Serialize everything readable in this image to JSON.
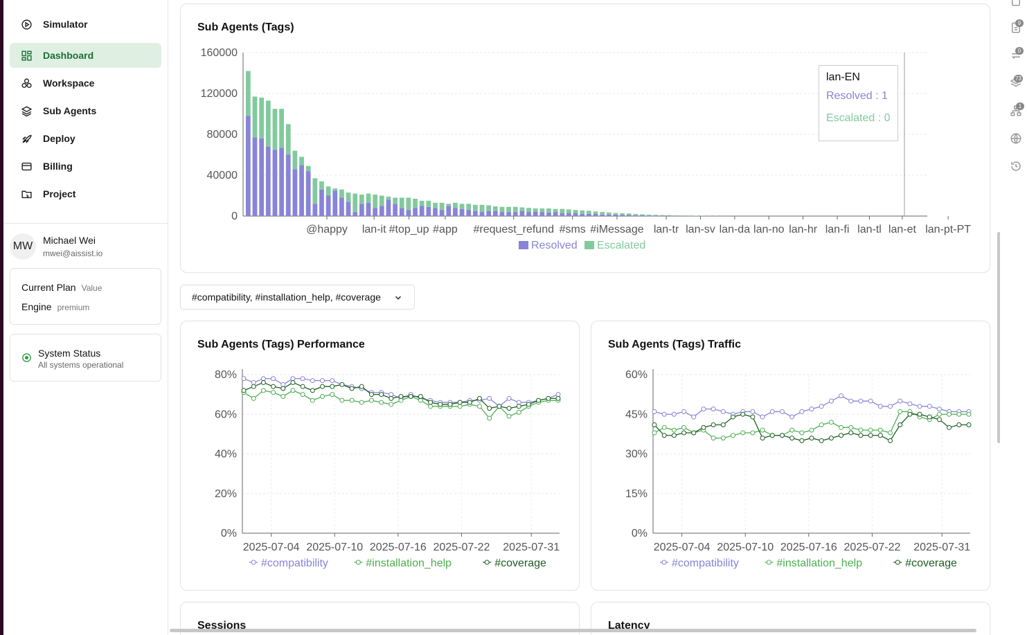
{
  "sidebar": {
    "items": [
      {
        "label": "Simulator",
        "icon": "play-circle-icon",
        "active": false
      },
      {
        "label": "Dashboard",
        "icon": "dashboard-icon",
        "active": true
      },
      {
        "label": "Workspace",
        "icon": "workspace-icon",
        "active": false
      },
      {
        "label": "Sub Agents",
        "icon": "layers-icon",
        "active": false
      },
      {
        "label": "Deploy",
        "icon": "rocket-icon",
        "active": false
      },
      {
        "label": "Billing",
        "icon": "credit-card-icon",
        "active": false
      },
      {
        "label": "Project",
        "icon": "folder-icon",
        "active": false
      }
    ],
    "user": {
      "initials": "MW",
      "name": "Michael Wei",
      "email": "mwei@aissist.io"
    },
    "plan": {
      "plan_label": "Current Plan",
      "plan_value": "Value",
      "engine_label": "Engine",
      "engine_value": "premium"
    },
    "status": {
      "title": "System Status",
      "subtitle": "All systems operational"
    }
  },
  "filter": {
    "selected": "#compatibility, #installation_help, #coverage"
  },
  "tooltip": {
    "title": "lan-EN",
    "resolved": "Resolved : 1",
    "escalated": "Escalated : 0"
  },
  "colors": {
    "resolved": "#8884d8",
    "escalated": "#82ca9d",
    "compat": "#8884d8",
    "install": "#4caf50",
    "coverage": "#1b5e20",
    "accent": "#1b6e34"
  },
  "sections": {
    "sessions": "Sessions",
    "latency": "Latency"
  },
  "rail": {
    "badges": [
      "9",
      "0",
      "73",
      "1"
    ]
  },
  "chart_data": [
    {
      "type": "bar",
      "title": "Sub Agents (Tags)",
      "stacked": true,
      "ylim": [
        0,
        160000
      ],
      "yticks": [
        "0",
        "40000",
        "80000",
        "120000",
        "160000"
      ],
      "tick_labels": [
        "@happy",
        "lan-it",
        "#top_up",
        "#app",
        "#request_refund",
        "#sms",
        "#iMessage",
        "lan-tr",
        "lan-sv",
        "lan-da",
        "lan-no",
        "lan-hr",
        "lan-fi",
        "lan-tl",
        "lan-et",
        "lan-pt-PT"
      ],
      "series": [
        {
          "name": "Resolved",
          "values": [
            98000,
            77000,
            76000,
            68000,
            65000,
            67000,
            60000,
            46000,
            50000,
            44000,
            12000,
            26000,
            20000,
            25000,
            18000,
            14000,
            4000,
            12000,
            13000,
            8000,
            10000,
            16000,
            12000,
            8000,
            6000,
            8000,
            10000,
            9000,
            8000,
            6000,
            10000,
            8000,
            7000,
            6000,
            5000,
            4000,
            5000,
            5000,
            4000,
            4000,
            4000,
            5000,
            4000,
            4500,
            4000,
            3500,
            4000,
            3000,
            3000,
            3000,
            2000,
            2200,
            2000,
            1500,
            1500,
            1500,
            1200,
            1000,
            800,
            700,
            500,
            400,
            300,
            300,
            200,
            150,
            150,
            100,
            100,
            80,
            60,
            50,
            40,
            30,
            30,
            20,
            20,
            15,
            10,
            10,
            8,
            6,
            5,
            4,
            3,
            3,
            2,
            2,
            2,
            1,
            1,
            1,
            1,
            1,
            1,
            1,
            1,
            1,
            1,
            1,
            1,
            1
          ]
        },
        {
          "name": "Escalated",
          "values": [
            44000,
            40000,
            40000,
            45000,
            40000,
            38000,
            30000,
            18000,
            8000,
            5000,
            25000,
            8000,
            9000,
            2000,
            8000,
            9000,
            18000,
            9000,
            9000,
            13000,
            10000,
            3000,
            6000,
            10000,
            12000,
            9000,
            5000,
            6000,
            5000,
            7000,
            2000,
            5000,
            5000,
            6000,
            6000,
            7000,
            5500,
            4500,
            5000,
            5000,
            5000,
            3500,
            4000,
            3000,
            3500,
            4000,
            3000,
            4000,
            3500,
            3000,
            3500,
            3000,
            2500,
            2500,
            2000,
            1500,
            1500,
            1500,
            1200,
            1000,
            900,
            800,
            600,
            500,
            400,
            350,
            300,
            250,
            200,
            150,
            120,
            100,
            80,
            60,
            50,
            40,
            30,
            25,
            20,
            15,
            12,
            10,
            8,
            6,
            5,
            4,
            3,
            3,
            2,
            2,
            2,
            1,
            1,
            1,
            1,
            1,
            1,
            0,
            0,
            0,
            0,
            0
          ]
        }
      ]
    },
    {
      "type": "line",
      "title": "Sub Agents (Tags) Performance",
      "x_ticks": [
        "2025-07-04",
        "2025-07-10",
        "2025-07-16",
        "2025-07-22",
        "2025-07-31"
      ],
      "yticks": [
        "0%",
        "20%",
        "40%",
        "60%",
        "80%"
      ],
      "ylim": [
        0,
        80
      ],
      "series": [
        {
          "name": "#compatibility",
          "values": [
            78,
            76,
            78,
            78,
            75,
            78,
            78,
            77,
            77,
            77,
            75,
            74,
            73,
            71,
            71,
            70,
            68,
            70,
            68,
            67,
            66,
            66,
            66,
            67,
            67,
            68,
            64,
            68,
            66,
            66,
            67,
            68,
            70
          ]
        },
        {
          "name": "#installation_help",
          "values": [
            71,
            68,
            72,
            71,
            69,
            72,
            70,
            67,
            69,
            70,
            67,
            67,
            66,
            67,
            66,
            65,
            67,
            69,
            67,
            64,
            64,
            64,
            64,
            65,
            64,
            58,
            64,
            59,
            61,
            64,
            66,
            67,
            67
          ]
        },
        {
          "name": "#coverage",
          "values": [
            72,
            74,
            76,
            74,
            73,
            76,
            74,
            72,
            74,
            74,
            75,
            73,
            74,
            70,
            70,
            68,
            69,
            69,
            69,
            66,
            65,
            65,
            66,
            66,
            68,
            63,
            64,
            63,
            64,
            65,
            67,
            68,
            68
          ]
        }
      ]
    },
    {
      "type": "line",
      "title": "Sub Agents (Tags) Traffic",
      "x_ticks": [
        "2025-07-04",
        "2025-07-10",
        "2025-07-16",
        "2025-07-22",
        "2025-07-31"
      ],
      "yticks": [
        "0%",
        "15%",
        "30%",
        "45%",
        "60%"
      ],
      "ylim": [
        0,
        60
      ],
      "series": [
        {
          "name": "#compatibility",
          "values": [
            46,
            45,
            45,
            46,
            44,
            47,
            47,
            46,
            45,
            46,
            46,
            44,
            46,
            46,
            44,
            46,
            47,
            48,
            50,
            52,
            50,
            50,
            50,
            48,
            48,
            50,
            49,
            48,
            48,
            47,
            46,
            46,
            46
          ]
        },
        {
          "name": "#installation_help",
          "values": [
            38,
            40,
            39,
            40,
            38,
            39,
            36,
            36,
            37,
            38,
            38,
            39,
            37,
            37,
            39,
            38,
            39,
            41,
            42,
            40,
            40,
            39,
            39,
            39,
            38,
            46,
            46,
            44,
            43,
            45,
            45,
            45,
            45
          ]
        },
        {
          "name": "#coverage",
          "values": [
            41,
            37,
            37,
            38,
            38,
            40,
            41,
            41,
            44,
            45,
            44,
            36,
            37,
            37,
            36,
            35,
            36,
            35,
            36,
            37,
            38,
            37,
            37,
            37,
            35,
            41,
            45,
            45,
            44,
            43,
            40,
            41,
            41
          ]
        }
      ]
    }
  ]
}
